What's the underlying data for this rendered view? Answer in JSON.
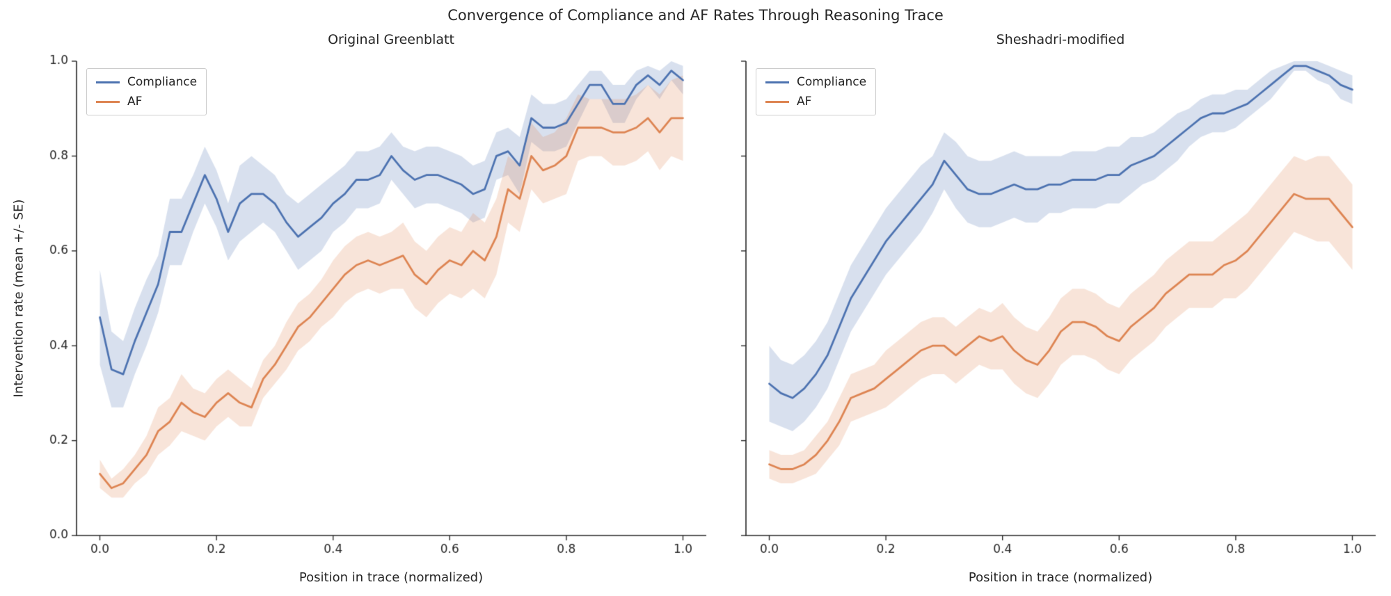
{
  "figure": {
    "title": "Convergence of Compliance and AF Rates Through Reasoning Trace",
    "ylabel": "Intervention rate (mean +/- SE)",
    "colors": {
      "compliance": "#4c72b0",
      "af": "#dd8452",
      "band_alpha": 0.22,
      "axis": "#262626"
    }
  },
  "chart_data": [
    {
      "type": "line",
      "title": "Original Greenblatt",
      "xlabel": "Position in trace (normalized)",
      "ylabel": "Intervention rate (mean +/- SE)",
      "xlim": [
        0,
        1
      ],
      "ylim": [
        0,
        1
      ],
      "grid": false,
      "legend_position": "upper left",
      "xticks": {
        "values": [
          0.0,
          0.2,
          0.4,
          0.6,
          0.8,
          1.0
        ],
        "labels": [
          "0.0",
          "0.2",
          "0.4",
          "0.6",
          "0.8",
          "1.0"
        ]
      },
      "yticks": {
        "values": [
          0.0,
          0.2,
          0.4,
          0.6,
          0.8,
          1.0
        ],
        "labels": [
          "0.0",
          "0.2",
          "0.4",
          "0.6",
          "0.8",
          "1.0"
        ]
      },
      "x": [
        0.0,
        0.02,
        0.04,
        0.06,
        0.08,
        0.1,
        0.12,
        0.14,
        0.16,
        0.18,
        0.2,
        0.22,
        0.24,
        0.26,
        0.28,
        0.3,
        0.32,
        0.34,
        0.36,
        0.38,
        0.4,
        0.42,
        0.44,
        0.46,
        0.48,
        0.5,
        0.52,
        0.54,
        0.56,
        0.58,
        0.6,
        0.62,
        0.64,
        0.66,
        0.68,
        0.7,
        0.72,
        0.74,
        0.76,
        0.78,
        0.8,
        0.82,
        0.84,
        0.86,
        0.88,
        0.9,
        0.92,
        0.94,
        0.96,
        0.98,
        1.0
      ],
      "series": [
        {
          "name": "Compliance",
          "color": "#4c72b0",
          "values": [
            0.46,
            0.35,
            0.34,
            0.41,
            0.47,
            0.53,
            0.64,
            0.64,
            0.7,
            0.76,
            0.71,
            0.64,
            0.7,
            0.72,
            0.72,
            0.7,
            0.66,
            0.63,
            0.65,
            0.67,
            0.7,
            0.72,
            0.75,
            0.75,
            0.76,
            0.8,
            0.77,
            0.75,
            0.76,
            0.76,
            0.75,
            0.74,
            0.72,
            0.73,
            0.8,
            0.81,
            0.78,
            0.88,
            0.86,
            0.86,
            0.87,
            0.91,
            0.95,
            0.95,
            0.91,
            0.91,
            0.95,
            0.97,
            0.95,
            0.98,
            0.96
          ],
          "se": [
            0.1,
            0.08,
            0.07,
            0.07,
            0.07,
            0.06,
            0.07,
            0.07,
            0.06,
            0.06,
            0.06,
            0.06,
            0.08,
            0.08,
            0.06,
            0.06,
            0.06,
            0.07,
            0.07,
            0.07,
            0.06,
            0.06,
            0.06,
            0.06,
            0.06,
            0.05,
            0.05,
            0.06,
            0.06,
            0.06,
            0.06,
            0.06,
            0.06,
            0.06,
            0.05,
            0.05,
            0.06,
            0.05,
            0.05,
            0.05,
            0.05,
            0.04,
            0.03,
            0.03,
            0.04,
            0.04,
            0.03,
            0.02,
            0.03,
            0.02,
            0.03
          ]
        },
        {
          "name": "AF",
          "color": "#dd8452",
          "values": [
            0.13,
            0.1,
            0.11,
            0.14,
            0.17,
            0.22,
            0.24,
            0.28,
            0.26,
            0.25,
            0.28,
            0.3,
            0.28,
            0.27,
            0.33,
            0.36,
            0.4,
            0.44,
            0.46,
            0.49,
            0.52,
            0.55,
            0.57,
            0.58,
            0.57,
            0.58,
            0.59,
            0.55,
            0.53,
            0.56,
            0.58,
            0.57,
            0.6,
            0.58,
            0.63,
            0.73,
            0.71,
            0.8,
            0.77,
            0.78,
            0.8,
            0.86,
            0.86,
            0.86,
            0.85,
            0.85,
            0.86,
            0.88,
            0.85,
            0.88,
            0.88
          ],
          "se": [
            0.03,
            0.02,
            0.03,
            0.03,
            0.04,
            0.05,
            0.05,
            0.06,
            0.05,
            0.05,
            0.05,
            0.05,
            0.05,
            0.04,
            0.04,
            0.04,
            0.05,
            0.05,
            0.05,
            0.05,
            0.06,
            0.06,
            0.06,
            0.06,
            0.06,
            0.06,
            0.07,
            0.07,
            0.07,
            0.07,
            0.07,
            0.07,
            0.08,
            0.08,
            0.08,
            0.07,
            0.07,
            0.07,
            0.07,
            0.07,
            0.08,
            0.07,
            0.06,
            0.06,
            0.07,
            0.07,
            0.07,
            0.07,
            0.08,
            0.08,
            0.09
          ]
        }
      ]
    },
    {
      "type": "line",
      "title": "Sheshadri-modified",
      "xlabel": "Position in trace (normalized)",
      "ylabel": "Intervention rate (mean +/- SE)",
      "xlim": [
        0,
        1
      ],
      "ylim": [
        0,
        1
      ],
      "grid": false,
      "legend_position": "upper left",
      "xticks": {
        "values": [
          0.0,
          0.2,
          0.4,
          0.6,
          0.8,
          1.0
        ],
        "labels": [
          "0.0",
          "0.2",
          "0.4",
          "0.6",
          "0.8",
          "1.0"
        ]
      },
      "yticks": {
        "values": [
          0.0,
          0.2,
          0.4,
          0.6,
          0.8,
          1.0
        ],
        "labels": [
          "0.0",
          "0.2",
          "0.4",
          "0.6",
          "0.8",
          "1.0"
        ]
      },
      "x": [
        0.0,
        0.02,
        0.04,
        0.06,
        0.08,
        0.1,
        0.12,
        0.14,
        0.16,
        0.18,
        0.2,
        0.22,
        0.24,
        0.26,
        0.28,
        0.3,
        0.32,
        0.34,
        0.36,
        0.38,
        0.4,
        0.42,
        0.44,
        0.46,
        0.48,
        0.5,
        0.52,
        0.54,
        0.56,
        0.58,
        0.6,
        0.62,
        0.64,
        0.66,
        0.68,
        0.7,
        0.72,
        0.74,
        0.76,
        0.78,
        0.8,
        0.82,
        0.84,
        0.86,
        0.88,
        0.9,
        0.92,
        0.94,
        0.96,
        0.98,
        1.0
      ],
      "series": [
        {
          "name": "Compliance",
          "color": "#4c72b0",
          "values": [
            0.32,
            0.3,
            0.29,
            0.31,
            0.34,
            0.38,
            0.44,
            0.5,
            0.54,
            0.58,
            0.62,
            0.65,
            0.68,
            0.71,
            0.74,
            0.79,
            0.76,
            0.73,
            0.72,
            0.72,
            0.73,
            0.74,
            0.73,
            0.73,
            0.74,
            0.74,
            0.75,
            0.75,
            0.75,
            0.76,
            0.76,
            0.78,
            0.79,
            0.8,
            0.82,
            0.84,
            0.86,
            0.88,
            0.89,
            0.89,
            0.9,
            0.91,
            0.93,
            0.95,
            0.97,
            0.99,
            0.99,
            0.98,
            0.97,
            0.95,
            0.94
          ],
          "se": [
            0.08,
            0.07,
            0.07,
            0.07,
            0.07,
            0.07,
            0.07,
            0.07,
            0.07,
            0.07,
            0.07,
            0.07,
            0.07,
            0.07,
            0.06,
            0.06,
            0.07,
            0.07,
            0.07,
            0.07,
            0.07,
            0.07,
            0.07,
            0.07,
            0.06,
            0.06,
            0.06,
            0.06,
            0.06,
            0.06,
            0.06,
            0.06,
            0.05,
            0.05,
            0.05,
            0.05,
            0.04,
            0.04,
            0.04,
            0.04,
            0.04,
            0.03,
            0.03,
            0.03,
            0.02,
            0.01,
            0.01,
            0.02,
            0.02,
            0.03,
            0.03
          ]
        },
        {
          "name": "AF",
          "color": "#dd8452",
          "values": [
            0.15,
            0.14,
            0.14,
            0.15,
            0.17,
            0.2,
            0.24,
            0.29,
            0.3,
            0.31,
            0.33,
            0.35,
            0.37,
            0.39,
            0.4,
            0.4,
            0.38,
            0.4,
            0.42,
            0.41,
            0.42,
            0.39,
            0.37,
            0.36,
            0.39,
            0.43,
            0.45,
            0.45,
            0.44,
            0.42,
            0.41,
            0.44,
            0.46,
            0.48,
            0.51,
            0.53,
            0.55,
            0.55,
            0.55,
            0.57,
            0.58,
            0.6,
            0.63,
            0.66,
            0.69,
            0.72,
            0.71,
            0.71,
            0.71,
            0.68,
            0.65
          ],
          "se": [
            0.03,
            0.03,
            0.03,
            0.03,
            0.04,
            0.04,
            0.05,
            0.05,
            0.05,
            0.05,
            0.06,
            0.06,
            0.06,
            0.06,
            0.06,
            0.06,
            0.06,
            0.06,
            0.06,
            0.06,
            0.07,
            0.07,
            0.07,
            0.07,
            0.07,
            0.07,
            0.07,
            0.07,
            0.07,
            0.07,
            0.07,
            0.07,
            0.07,
            0.07,
            0.07,
            0.07,
            0.07,
            0.07,
            0.07,
            0.07,
            0.08,
            0.08,
            0.08,
            0.08,
            0.08,
            0.08,
            0.08,
            0.09,
            0.09,
            0.09,
            0.09
          ]
        }
      ]
    }
  ]
}
